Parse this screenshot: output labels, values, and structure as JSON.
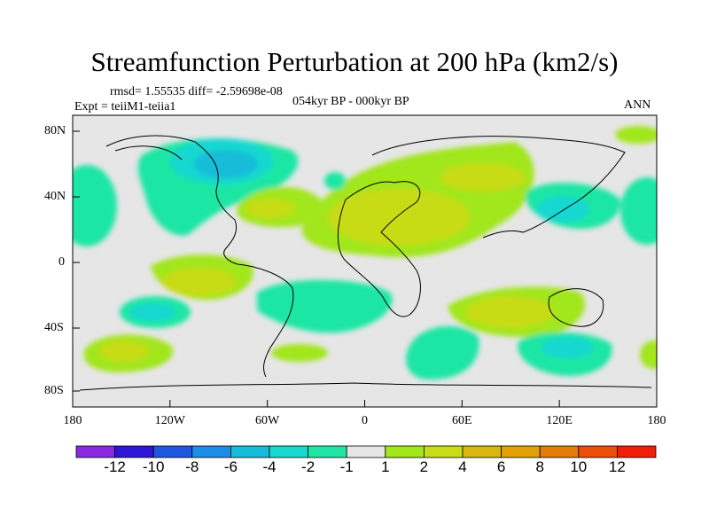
{
  "map": {
    "title": "Streamfunction Perturbation at 200 hPa (km2/s)",
    "stats": "rmsd= 1.55535 diff= -2.59698e-08",
    "experiment": "Expt = teiiM1-teiia1",
    "period": "054kyr BP - 000kyr BP",
    "season": "ANN",
    "lat_ticks": [
      "80N",
      "40N",
      "0",
      "40S",
      "80S"
    ],
    "lon_ticks": [
      "180",
      "120W",
      "60W",
      "0",
      "60E",
      "120E",
      "180"
    ],
    "background_color": "#e6e6e6"
  },
  "colorbar": {
    "colors": [
      "#8a2be2",
      "#2e16d6",
      "#1f57e0",
      "#1d8ee8",
      "#16bcd8",
      "#18d8d0",
      "#1fe6a4",
      "#e6e6e6",
      "#a2e61c",
      "#c8dc18",
      "#d8b810",
      "#e2a008",
      "#e47a08",
      "#ea4e08",
      "#f01e08"
    ],
    "labels": [
      "-12",
      "-10",
      "-8",
      "-6",
      "-4",
      "-2",
      "-1",
      "1",
      "2",
      "4",
      "6",
      "8",
      "10",
      "12"
    ]
  }
}
